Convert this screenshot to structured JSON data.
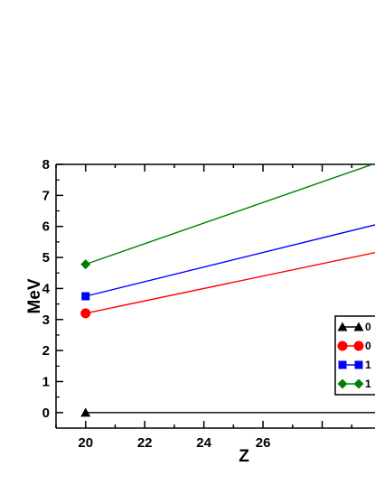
{
  "chart_data": {
    "type": "line",
    "xlabel": "Z",
    "ylabel": "MeV",
    "xlim": [
      19,
      30
    ],
    "ylim": [
      -0.5,
      8
    ],
    "x_ticks": [
      "20",
      "22",
      "24",
      "26"
    ],
    "y_ticks": [
      "0",
      "1",
      "2",
      "3",
      "4",
      "5",
      "6",
      "7",
      "8"
    ],
    "grid": false,
    "legend_position": "right",
    "series": [
      {
        "name": "0",
        "marker": "triangle",
        "color": "#000000",
        "x": [
          20,
          30
        ],
        "y": [
          0,
          0
        ]
      },
      {
        "name": "0",
        "marker": "circle",
        "color": "#ff0000",
        "x": [
          20,
          30
        ],
        "y": [
          3.2,
          5.2
        ]
      },
      {
        "name": "1",
        "marker": "square",
        "color": "#0000ff",
        "x": [
          20,
          30
        ],
        "y": [
          3.75,
          6.1
        ]
      },
      {
        "name": "1",
        "marker": "diamond",
        "color": "#008000",
        "x": [
          20,
          30
        ],
        "y": [
          4.78,
          8.1
        ]
      }
    ]
  }
}
